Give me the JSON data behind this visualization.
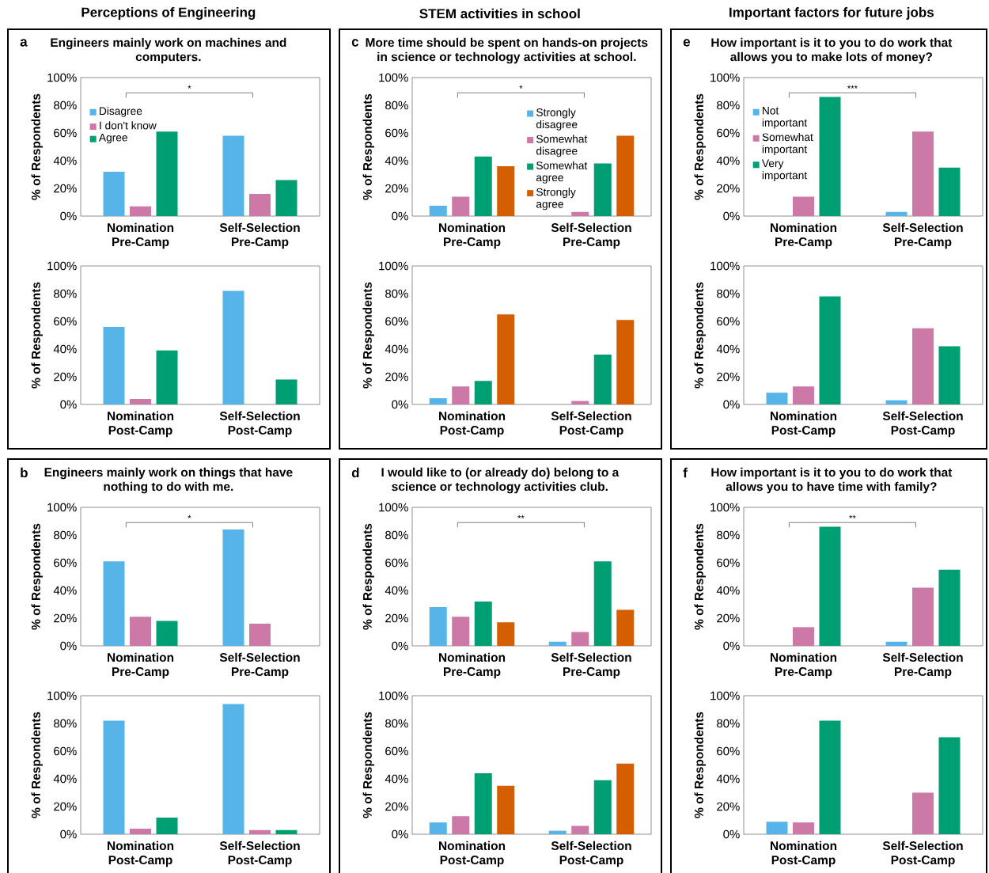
{
  "chart_data": [
    {
      "type": "bar",
      "title": "Engineers mainly work on machines and computers.",
      "annotations": [
        "a",
        "*",
        "Perceptions of Engineering"
      ],
      "ylabel": "% of Respondents",
      "categories": [
        "Nomination Pre-Camp",
        "Self-Selection Pre-Camp"
      ],
      "legend": "top left",
      "ylim": [
        0,
        100
      ],
      "yticks": [
        {
          "value": 0,
          "label": "0%"
        },
        {
          "value": 20,
          "label": "20%"
        },
        {
          "value": 40,
          "label": "40%"
        },
        {
          "value": 60,
          "label": "60%"
        },
        {
          "value": 80,
          "label": "80%"
        },
        {
          "value": 100,
          "label": "100%"
        }
      ],
      "series": [
        {
          "name": "Disagree",
          "color": "#56b4e9",
          "values": [
            32,
            58
          ]
        },
        {
          "name": "I don't know",
          "color": "#cc79a7",
          "values": [
            7,
            16
          ]
        },
        {
          "name": "Agree",
          "color": "#009e73",
          "values": [
            61,
            26
          ]
        }
      ]
    },
    {
      "type": "bar",
      "ylabel": "% of Respondents",
      "categories": [
        "Nomination Post-Camp",
        "Self-Selection Post-Camp"
      ],
      "ylim": [
        0,
        100
      ],
      "yticks": [
        {
          "value": 0,
          "label": "0%"
        },
        {
          "value": 20,
          "label": "20%"
        },
        {
          "value": 40,
          "label": "40%"
        },
        {
          "value": 60,
          "label": "60%"
        },
        {
          "value": 80,
          "label": "80%"
        },
        {
          "value": 100,
          "label": "100%"
        }
      ],
      "series": [
        {
          "color": "#56b4e9",
          "values": [
            56,
            82
          ]
        },
        {
          "color": "#cc79a7",
          "values": [
            4,
            0
          ]
        },
        {
          "color": "#009e73",
          "values": [
            39,
            18
          ]
        }
      ]
    },
    {
      "type": "bar",
      "title": "More time should be spent on hands-on projects in science or technology activities at school.",
      "annotations": [
        "c",
        "*",
        "STEM activities in school"
      ],
      "ylabel": "% of Respondents",
      "categories": [
        "Nomination Pre-Camp",
        "Self-Selection Pre-Camp"
      ],
      "legend": "center",
      "ylim": [
        0,
        100
      ],
      "yticks": [
        {
          "value": 0,
          "label": "0%"
        },
        {
          "value": 20,
          "label": "20%"
        },
        {
          "value": 40,
          "label": "40%"
        },
        {
          "value": 60,
          "label": "60%"
        },
        {
          "value": 80,
          "label": "80%"
        },
        {
          "value": 100,
          "label": "100%"
        }
      ],
      "series": [
        {
          "name": "Strongly disagree",
          "color": "#56b4e9",
          "values": [
            7.5,
            0
          ]
        },
        {
          "name": "Somewhat disagree",
          "color": "#cc79a7",
          "values": [
            14,
            3
          ]
        },
        {
          "name": "Somewhat agree",
          "color": "#009e73",
          "values": [
            43,
            38
          ]
        },
        {
          "name": "Strongly agree",
          "color": "#d55e00",
          "values": [
            36,
            58
          ]
        }
      ]
    },
    {
      "type": "bar",
      "ylabel": "% of Respondents",
      "categories": [
        "Nomination Post-Camp",
        "Self-Selection Post-Camp"
      ],
      "ylim": [
        0,
        100
      ],
      "yticks": [
        {
          "value": 0,
          "label": "0%"
        },
        {
          "value": 20,
          "label": "20%"
        },
        {
          "value": 40,
          "label": "40%"
        },
        {
          "value": 60,
          "label": "60%"
        },
        {
          "value": 80,
          "label": "80%"
        },
        {
          "value": 100,
          "label": "100%"
        }
      ],
      "series": [
        {
          "color": "#56b4e9",
          "values": [
            4.5,
            0
          ]
        },
        {
          "color": "#cc79a7",
          "values": [
            13,
            2.5
          ]
        },
        {
          "color": "#009e73",
          "values": [
            17,
            36
          ]
        },
        {
          "color": "#d55e00",
          "values": [
            65,
            61
          ]
        }
      ]
    },
    {
      "type": "bar",
      "title": "How important is it to you to do work that allows you to make lots of money?",
      "annotations": [
        "e",
        "***",
        "Important factors for future jobs"
      ],
      "ylabel": "% of Respondents",
      "categories": [
        "Nomination Pre-Camp",
        "Self-Selection Pre-Camp"
      ],
      "legend": "top left",
      "ylim": [
        0,
        100
      ],
      "yticks": [
        {
          "value": 0,
          "label": "0%"
        },
        {
          "value": 20,
          "label": "20%"
        },
        {
          "value": 40,
          "label": "40%"
        },
        {
          "value": 60,
          "label": "60%"
        },
        {
          "value": 80,
          "label": "80%"
        },
        {
          "value": 100,
          "label": "100%"
        }
      ],
      "series": [
        {
          "name": "Not important",
          "color": "#56b4e9",
          "values": [
            0,
            3
          ]
        },
        {
          "name": "Somewhat important",
          "color": "#cc79a7",
          "values": [
            14,
            61
          ]
        },
        {
          "name": "Very important",
          "color": "#009e73",
          "values": [
            86,
            35
          ]
        }
      ]
    },
    {
      "type": "bar",
      "ylabel": "% of Respondents",
      "categories": [
        "Nomination Post-Camp",
        "Self-Selection Post-Camp"
      ],
      "ylim": [
        0,
        100
      ],
      "yticks": [
        {
          "value": 0,
          "label": "0%"
        },
        {
          "value": 20,
          "label": "20%"
        },
        {
          "value": 40,
          "label": "40%"
        },
        {
          "value": 60,
          "label": "60%"
        },
        {
          "value": 80,
          "label": "80%"
        },
        {
          "value": 100,
          "label": "100%"
        }
      ],
      "series": [
        {
          "color": "#56b4e9",
          "values": [
            8.5,
            3
          ]
        },
        {
          "color": "#cc79a7",
          "values": [
            13,
            55
          ]
        },
        {
          "color": "#009e73",
          "values": [
            78,
            42
          ]
        }
      ]
    },
    {
      "type": "bar",
      "title": "Engineers mainly work on things that have nothing to do with me.",
      "annotations": [
        "b",
        "*"
      ],
      "ylabel": "% of Respondents",
      "categories": [
        "Nomination Pre-Camp",
        "Self-Selection Pre-Camp"
      ],
      "ylim": [
        0,
        100
      ],
      "yticks": [
        {
          "value": 0,
          "label": "0%"
        },
        {
          "value": 20,
          "label": "20%"
        },
        {
          "value": 40,
          "label": "40%"
        },
        {
          "value": 60,
          "label": "60%"
        },
        {
          "value": 80,
          "label": "80%"
        },
        {
          "value": 100,
          "label": "100%"
        }
      ],
      "series": [
        {
          "color": "#56b4e9",
          "values": [
            61,
            84
          ]
        },
        {
          "color": "#cc79a7",
          "values": [
            21,
            16
          ]
        },
        {
          "color": "#009e73",
          "values": [
            18,
            0
          ]
        }
      ]
    },
    {
      "type": "bar",
      "ylabel": "% of Respondents",
      "categories": [
        "Nomination Post-Camp",
        "Self-Selection Post-Camp"
      ],
      "ylim": [
        0,
        100
      ],
      "yticks": [
        {
          "value": 0,
          "label": "0%"
        },
        {
          "value": 20,
          "label": "20%"
        },
        {
          "value": 40,
          "label": "40%"
        },
        {
          "value": 60,
          "label": "60%"
        },
        {
          "value": 80,
          "label": "80%"
        },
        {
          "value": 100,
          "label": "100%"
        }
      ],
      "series": [
        {
          "color": "#56b4e9",
          "values": [
            82,
            94
          ]
        },
        {
          "color": "#cc79a7",
          "values": [
            4,
            3
          ]
        },
        {
          "color": "#009e73",
          "values": [
            12,
            3
          ]
        }
      ]
    },
    {
      "type": "bar",
      "title": "I would like to (or already do) belong to a science or technology activities club.",
      "annotations": [
        "d",
        "**"
      ],
      "ylabel": "% of Respondents",
      "categories": [
        "Nomination Pre-Camp",
        "Self-Selection Pre-Camp"
      ],
      "ylim": [
        0,
        100
      ],
      "yticks": [
        {
          "value": 0,
          "label": "0%"
        },
        {
          "value": 20,
          "label": "20%"
        },
        {
          "value": 40,
          "label": "40%"
        },
        {
          "value": 60,
          "label": "60%"
        },
        {
          "value": 80,
          "label": "80%"
        },
        {
          "value": 100,
          "label": "100%"
        }
      ],
      "series": [
        {
          "color": "#56b4e9",
          "values": [
            28,
            3
          ]
        },
        {
          "color": "#cc79a7",
          "values": [
            21,
            10
          ]
        },
        {
          "color": "#009e73",
          "values": [
            32,
            61
          ]
        },
        {
          "color": "#d55e00",
          "values": [
            17,
            26
          ]
        }
      ]
    },
    {
      "type": "bar",
      "ylabel": "% of Respondents",
      "categories": [
        "Nomination Post-Camp",
        "Self-Selection Post-Camp"
      ],
      "ylim": [
        0,
        100
      ],
      "yticks": [
        {
          "value": 0,
          "label": "0%"
        },
        {
          "value": 20,
          "label": "20%"
        },
        {
          "value": 40,
          "label": "40%"
        },
        {
          "value": 60,
          "label": "60%"
        },
        {
          "value": 80,
          "label": "80%"
        },
        {
          "value": 100,
          "label": "100%"
        }
      ],
      "series": [
        {
          "color": "#56b4e9",
          "values": [
            8.5,
            2.5
          ]
        },
        {
          "color": "#cc79a7",
          "values": [
            13,
            6
          ]
        },
        {
          "color": "#009e73",
          "values": [
            44,
            39
          ]
        },
        {
          "color": "#d55e00",
          "values": [
            35,
            51
          ]
        }
      ]
    },
    {
      "type": "bar",
      "title": "How important is it to you to do work that allows you to have time with family?",
      "annotations": [
        "f",
        "**"
      ],
      "ylabel": "% of Respondents",
      "categories": [
        "Nomination Pre-Camp",
        "Self-Selection Pre-Camp"
      ],
      "ylim": [
        0,
        100
      ],
      "yticks": [
        {
          "value": 0,
          "label": "0%"
        },
        {
          "value": 20,
          "label": "20%"
        },
        {
          "value": 40,
          "label": "40%"
        },
        {
          "value": 60,
          "label": "60%"
        },
        {
          "value": 80,
          "label": "80%"
        },
        {
          "value": 100,
          "label": "100%"
        }
      ],
      "series": [
        {
          "color": "#56b4e9",
          "values": [
            0,
            3
          ]
        },
        {
          "color": "#cc79a7",
          "values": [
            13.5,
            42
          ]
        },
        {
          "color": "#009e73",
          "values": [
            86,
            55
          ]
        }
      ]
    },
    {
      "type": "bar",
      "ylabel": "% of Respondents",
      "categories": [
        "Nomination Post-Camp",
        "Self-Selection Post-Camp"
      ],
      "ylim": [
        0,
        100
      ],
      "yticks": [
        {
          "value": 0,
          "label": "0%"
        },
        {
          "value": 20,
          "label": "20%"
        },
        {
          "value": 40,
          "label": "40%"
        },
        {
          "value": 60,
          "label": "60%"
        },
        {
          "value": 80,
          "label": "80%"
        },
        {
          "value": 100,
          "label": "100%"
        }
      ],
      "series": [
        {
          "color": "#56b4e9",
          "values": [
            9,
            0
          ]
        },
        {
          "color": "#cc79a7",
          "values": [
            8.5,
            30
          ]
        },
        {
          "color": "#009e73",
          "values": [
            82,
            70
          ]
        }
      ]
    }
  ]
}
